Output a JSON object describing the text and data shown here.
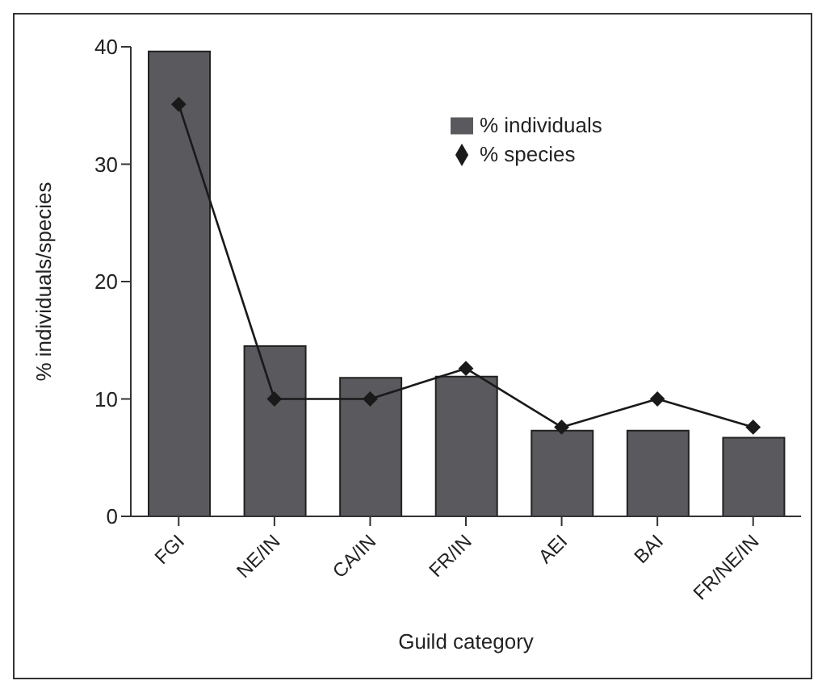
{
  "chart_data": {
    "type": "bar",
    "xlabel": "Guild category",
    "ylabel": "% individuals/species",
    "categories": [
      "FGI",
      "NE/IN",
      "CA/IN",
      "FR/IN",
      "AEI",
      "BAI",
      "FR/NE/IN"
    ],
    "series": [
      {
        "name": "% individuals",
        "color": "#5a5a5e",
        "values": [
          39.6,
          14.5,
          11.8,
          11.9,
          7.3,
          7.3,
          6.7
        ]
      },
      {
        "name": "% species",
        "type": "line",
        "color": "#1a1a1a",
        "values": [
          35.1,
          10,
          10,
          12.6,
          7.6,
          10,
          7.6
        ]
      }
    ],
    "ylim": [
      0,
      40
    ],
    "yticks": [
      0,
      10,
      20,
      30,
      40
    ],
    "grid": false,
    "legend": "top right",
    "marker": "diamond",
    "line_style": "solid"
  }
}
